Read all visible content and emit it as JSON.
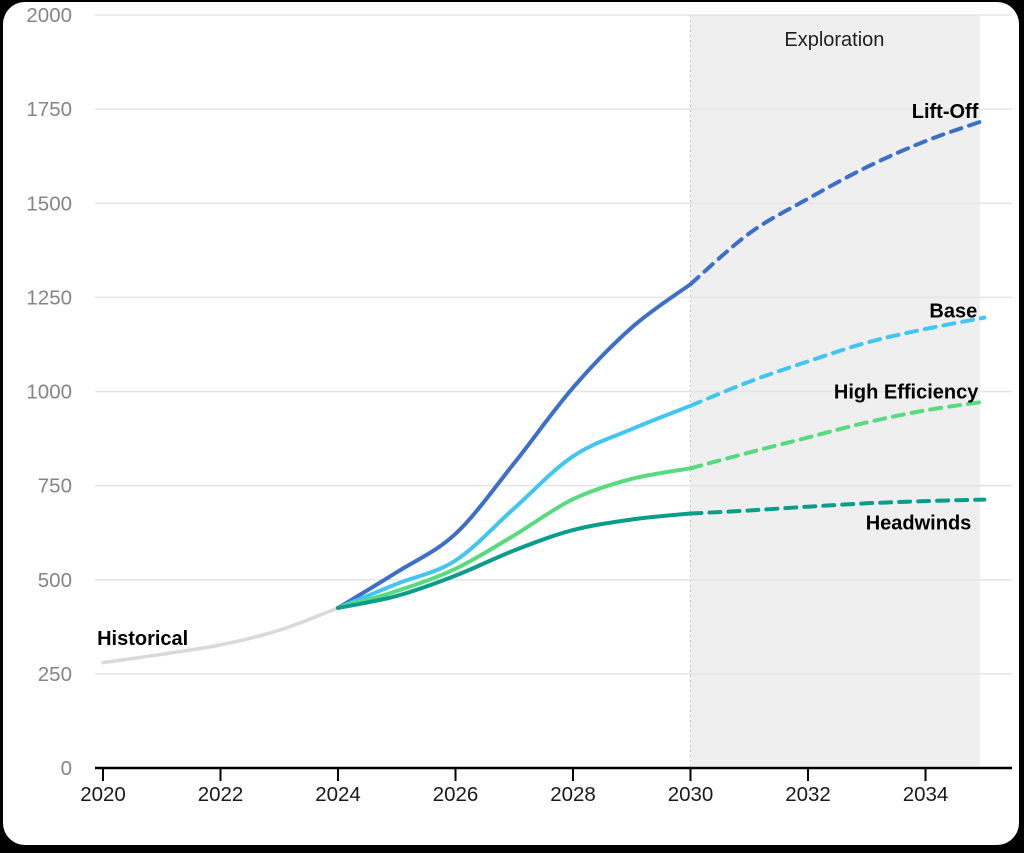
{
  "chart_data": {
    "type": "line",
    "title": "",
    "xlabel": "",
    "ylabel": "",
    "x_axis": {
      "ticks": [
        2020,
        2022,
        2024,
        2026,
        2028,
        2030,
        2032,
        2034
      ],
      "range": [
        2019.85,
        2035.4
      ],
      "tick_label_color": "#1a1a1a",
      "axis_color": "#000000"
    },
    "y_axis": {
      "ticks": [
        0,
        250,
        500,
        750,
        1000,
        1250,
        1500,
        1750,
        2000
      ],
      "range": [
        0,
        2000
      ],
      "tick_label_color": "#858585",
      "gridline_color": "#e5e5e5",
      "grid": true
    },
    "region": {
      "label": "Exploration",
      "x_start": 2030,
      "x_end": 2035,
      "fill": "#efefef",
      "edge_style": "dotted",
      "edge_color": "#c0c0c0",
      "label_color": "#1f1f1f"
    },
    "legend_position": "inline-end-labels",
    "series": [
      {
        "name": "Historical",
        "color": "#d9d9d9",
        "width": 3.5,
        "segments": [
          {
            "style": "solid",
            "points": [
              [
                2020,
                280
              ],
              [
                2021,
                302
              ],
              [
                2022,
                327
              ],
              [
                2023,
                366
              ],
              [
                2024,
                425
              ]
            ]
          }
        ]
      },
      {
        "name": "Lift-Off",
        "color": "#3d6fc8",
        "width": 4,
        "segments": [
          {
            "style": "solid",
            "points": [
              [
                2024,
                425
              ],
              [
                2025,
                520
              ],
              [
                2026,
                622
              ],
              [
                2027,
                810
              ],
              [
                2028,
                1010
              ],
              [
                2029,
                1170
              ],
              [
                2030,
                1285
              ]
            ]
          },
          {
            "style": "dashed",
            "points": [
              [
                2030,
                1285
              ],
              [
                2031,
                1420
              ],
              [
                2032,
                1512
              ],
              [
                2033,
                1596
              ],
              [
                2034,
                1665
              ],
              [
                2035,
                1720
              ]
            ]
          }
        ]
      },
      {
        "name": "Base",
        "color": "#41c6f2",
        "width": 4,
        "segments": [
          {
            "style": "solid",
            "points": [
              [
                2024,
                425
              ],
              [
                2025,
                489
              ],
              [
                2026,
                551
              ],
              [
                2027,
                690
              ],
              [
                2028,
                828
              ],
              [
                2029,
                900
              ],
              [
                2030,
                962
              ]
            ]
          },
          {
            "style": "dashed",
            "points": [
              [
                2030,
                962
              ],
              [
                2031,
                1026
              ],
              [
                2032,
                1080
              ],
              [
                2033,
                1130
              ],
              [
                2034,
                1166
              ],
              [
                2035,
                1196
              ]
            ]
          }
        ]
      },
      {
        "name": "High Efficiency",
        "color": "#58da7f",
        "width": 4,
        "segments": [
          {
            "style": "solid",
            "points": [
              [
                2024,
                425
              ],
              [
                2025,
                470
              ],
              [
                2026,
                529
              ],
              [
                2027,
                618
              ],
              [
                2028,
                714
              ],
              [
                2029,
                768
              ],
              [
                2030,
                796
              ]
            ]
          },
          {
            "style": "dashed",
            "points": [
              [
                2030,
                796
              ],
              [
                2031,
                838
              ],
              [
                2032,
                878
              ],
              [
                2033,
                918
              ],
              [
                2034,
                950
              ],
              [
                2035,
                973
              ]
            ]
          }
        ]
      },
      {
        "name": "Headwinds",
        "color": "#0b9d89",
        "width": 4,
        "segments": [
          {
            "style": "solid",
            "points": [
              [
                2024,
                425
              ],
              [
                2025,
                457
              ],
              [
                2026,
                511
              ],
              [
                2027,
                578
              ],
              [
                2028,
                632
              ],
              [
                2029,
                660
              ],
              [
                2030,
                676
              ]
            ]
          },
          {
            "style": "dashed",
            "points": [
              [
                2030,
                676
              ],
              [
                2031,
                684
              ],
              [
                2032,
                694
              ],
              [
                2033,
                703
              ],
              [
                2034,
                709
              ],
              [
                2035,
                713
              ]
            ]
          }
        ]
      }
    ],
    "annotations": [
      {
        "id": "label-historical",
        "text": "Historical",
        "x": 2019.9,
        "y": 327,
        "anchor": "start",
        "bold": true,
        "color": "#000000"
      },
      {
        "id": "label-lift-off",
        "text": "Lift-Off",
        "x": 2034.9,
        "y": 1727,
        "anchor": "end",
        "bold": true,
        "color": "#000000"
      },
      {
        "id": "label-base",
        "text": "Base",
        "x": 2034.88,
        "y": 1197,
        "anchor": "end",
        "bold": true,
        "color": "#000000"
      },
      {
        "id": "label-high-efficiency",
        "text": "High Efficiency",
        "x": 2034.9,
        "y": 982,
        "anchor": "end",
        "bold": true,
        "color": "#000000"
      },
      {
        "id": "label-headwinds",
        "text": "Headwinds",
        "x": 2034.78,
        "y": 633,
        "anchor": "end",
        "bold": true,
        "color": "#000000"
      },
      {
        "id": "label-exploration",
        "text": "Exploration",
        "x": 2032.45,
        "y": 1918,
        "anchor": "middle",
        "bold": false,
        "color": "#1f1f1f"
      }
    ]
  }
}
